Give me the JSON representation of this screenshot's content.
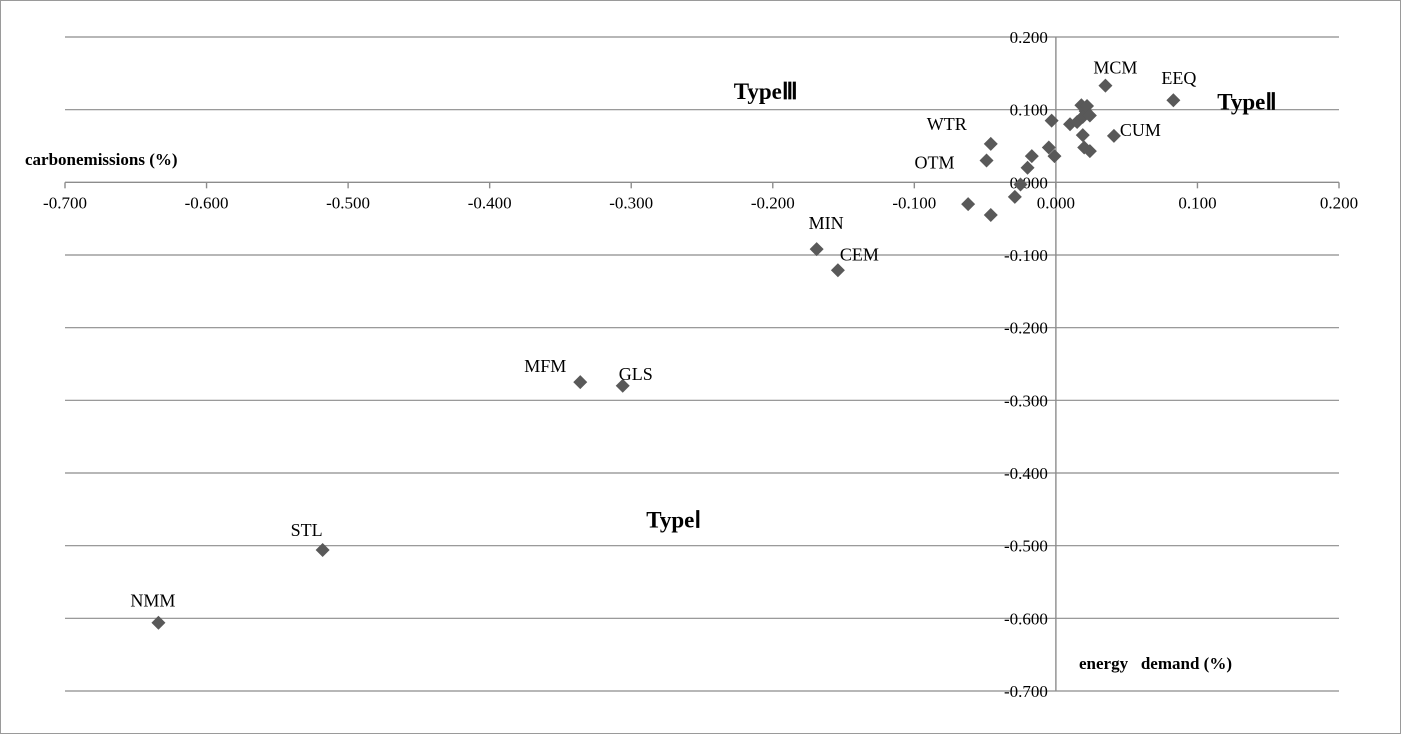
{
  "chart_data": {
    "type": "scatter",
    "title": "",
    "xlabel": "energy   demand (%)",
    "ylabel": "carbonemissions (%)",
    "xlim": [
      -0.7,
      0.2
    ],
    "ylim": [
      -0.7,
      0.2
    ],
    "x_ticks": [
      "-0.700",
      "-0.600",
      "-0.500",
      "-0.400",
      "-0.300",
      "-0.200",
      "-0.100",
      "0.000",
      "0.100",
      "0.200"
    ],
    "y_ticks": [
      "0.200",
      "0.100",
      "0.000",
      "-0.100",
      "-0.200",
      "-0.300",
      "-0.400",
      "-0.500",
      "-0.600",
      "-0.700"
    ],
    "grid": true,
    "marker_color": "#595959",
    "regions": [
      {
        "label": "TypeⅢ",
        "x": -0.205,
        "y": 0.115
      },
      {
        "label": "TypeⅡ",
        "x": 0.135,
        "y": 0.1
      },
      {
        "label": "TypeⅠ",
        "x": -0.27,
        "y": -0.475
      }
    ],
    "labeled_points": [
      {
        "label": "MCM",
        "x": 0.035,
        "y": 0.133
      },
      {
        "label": "EEQ",
        "x": 0.083,
        "y": 0.113
      },
      {
        "label": "CUM",
        "x": 0.041,
        "y": 0.064
      },
      {
        "label": "WTR",
        "x": -0.046,
        "y": 0.053
      },
      {
        "label": "OTM",
        "x": -0.049,
        "y": 0.03
      },
      {
        "label": "MIN",
        "x": -0.169,
        "y": -0.092
      },
      {
        "label": "CEM",
        "x": -0.154,
        "y": -0.121
      },
      {
        "label": "MFM",
        "x": -0.336,
        "y": -0.275
      },
      {
        "label": "GLS",
        "x": -0.306,
        "y": -0.28
      },
      {
        "label": "STL",
        "x": -0.518,
        "y": -0.506
      },
      {
        "label": "NMM",
        "x": -0.634,
        "y": -0.606
      }
    ],
    "unlabeled_points": [
      {
        "x": -0.003,
        "y": 0.085
      },
      {
        "x": 0.01,
        "y": 0.08
      },
      {
        "x": 0.015,
        "y": 0.083
      },
      {
        "x": 0.018,
        "y": 0.106
      },
      {
        "x": 0.022,
        "y": 0.105
      },
      {
        "x": 0.021,
        "y": 0.098
      },
      {
        "x": 0.019,
        "y": 0.09
      },
      {
        "x": 0.024,
        "y": 0.092
      },
      {
        "x": 0.019,
        "y": 0.065
      },
      {
        "x": 0.02,
        "y": 0.048
      },
      {
        "x": 0.024,
        "y": 0.043
      },
      {
        "x": -0.005,
        "y": 0.048
      },
      {
        "x": -0.001,
        "y": 0.036
      },
      {
        "x": -0.017,
        "y": 0.036
      },
      {
        "x": -0.02,
        "y": 0.02
      },
      {
        "x": -0.025,
        "y": -0.003
      },
      {
        "x": -0.029,
        "y": -0.02
      },
      {
        "x": -0.046,
        "y": -0.045
      },
      {
        "x": -0.062,
        "y": -0.03
      }
    ]
  }
}
